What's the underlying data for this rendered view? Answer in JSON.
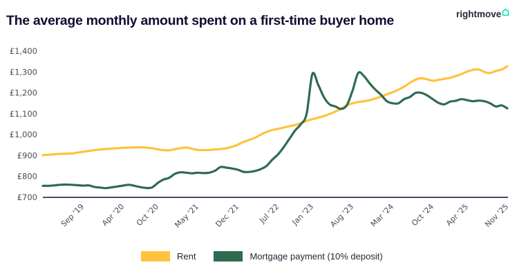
{
  "header": {
    "title": "The average monthly amount spent on a first-time buyer home",
    "logo_text": "rightmove",
    "logo_icon": "house-outline-icon"
  },
  "colors": {
    "rent": "#ffc23d",
    "mortgage": "#2e6b50",
    "axis": "#0e0e33",
    "title": "#0e0e33",
    "logo_accent": "#00deb6"
  },
  "legend": {
    "items": [
      {
        "label": "Rent",
        "color": "#ffc23d"
      },
      {
        "label": "Mortgage payment (10% deposit)",
        "color": "#2e6b50"
      }
    ]
  },
  "chart_data": {
    "type": "line",
    "title": "The average monthly amount spent on a first-time buyer home",
    "xlabel": "",
    "ylabel": "",
    "ylim": [
      700,
      1400
    ],
    "yticks": [
      "£700",
      "£800",
      "£900",
      "£1,000",
      "£1,100",
      "£1,200",
      "£1,300",
      "£1,400"
    ],
    "ytick_values": [
      700,
      800,
      900,
      1000,
      1100,
      1200,
      1300,
      1400
    ],
    "xtick_labels": [
      "Sep '19",
      "Apr '20",
      "Oct '20",
      "May '21",
      "Dec '21",
      "Jul '22",
      "Jan '23",
      "Aug '23",
      "Mar '24",
      "Oct '24",
      "Apr '25",
      "Nov '25"
    ],
    "xtick_index": [
      7,
      14,
      20,
      27,
      34,
      41,
      47,
      54,
      61,
      68,
      74,
      81
    ],
    "grid": false,
    "legend_position": "bottom",
    "x_start": "Feb '19",
    "x_end": "Nov '25",
    "frequency": "monthly",
    "series": [
      {
        "name": "Rent",
        "values": [
          902,
          904,
          906,
          908,
          909,
          910,
          914,
          918,
          922,
          926,
          929,
          931,
          933,
          935,
          937,
          938,
          939,
          940,
          938,
          935,
          930,
          926,
          925,
          930,
          935,
          938,
          933,
          927,
          926,
          927,
          929,
          931,
          935,
          942,
          952,
          965,
          975,
          985,
          1000,
          1013,
          1022,
          1028,
          1034,
          1040,
          1046,
          1055,
          1066,
          1074,
          1081,
          1089,
          1099,
          1110,
          1124,
          1140,
          1150,
          1156,
          1160,
          1165,
          1173,
          1182,
          1193,
          1203,
          1215,
          1230,
          1248,
          1263,
          1270,
          1265,
          1258,
          1262,
          1267,
          1272,
          1280,
          1290,
          1302,
          1310,
          1312,
          1300,
          1295,
          1305,
          1312,
          1327
        ],
        "color": "#ffc23d"
      },
      {
        "name": "Mortgage payment (10% deposit)",
        "values": [
          755,
          755,
          757,
          760,
          761,
          760,
          758,
          756,
          757,
          750,
          747,
          744,
          748,
          752,
          756,
          760,
          755,
          749,
          745,
          747,
          768,
          785,
          793,
          812,
          820,
          818,
          815,
          818,
          816,
          818,
          827,
          845,
          842,
          838,
          832,
          822,
          822,
          826,
          835,
          850,
          880,
          905,
          940,
          980,
          1020,
          1050,
          1100,
          1290,
          1240,
          1180,
          1145,
          1135,
          1123,
          1140,
          1210,
          1295,
          1280,
          1245,
          1215,
          1190,
          1160,
          1150,
          1150,
          1170,
          1180,
          1200,
          1200,
          1188,
          1170,
          1152,
          1145,
          1158,
          1162,
          1170,
          1165,
          1160,
          1163,
          1160,
          1150,
          1135,
          1140,
          1126
        ],
        "color": "#2e6b50"
      }
    ]
  }
}
